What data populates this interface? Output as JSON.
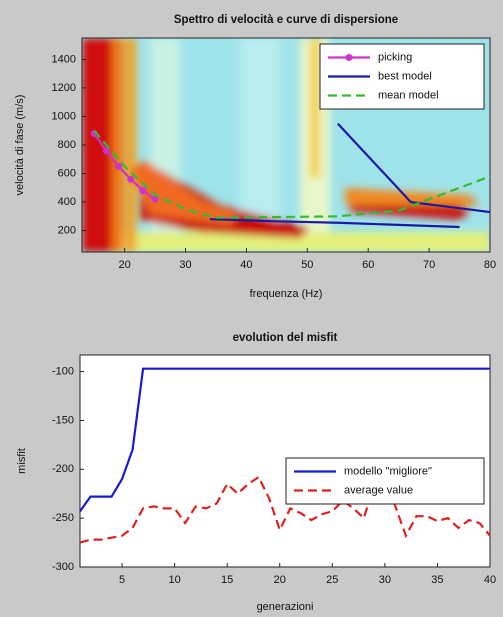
{
  "chart_data": [
    {
      "type": "line",
      "title": "Spettro di velocità e curve di dispersione",
      "xlabel": "frequenza (Hz)",
      "ylabel": "velocità di fase (m/s)",
      "xlim": [
        13,
        80
      ],
      "ylim": [
        50,
        1550
      ],
      "xticks": [
        20,
        30,
        40,
        50,
        60,
        70,
        80
      ],
      "yticks": [
        200,
        400,
        600,
        800,
        1000,
        1200,
        1400
      ],
      "legend": "upper right",
      "series": [
        {
          "name": "picking",
          "color": "#cc33cc",
          "marker": "o",
          "linestyle": "-",
          "x": [
            15,
            17,
            19,
            21,
            23,
            25
          ],
          "values": [
            880,
            760,
            650,
            560,
            480,
            420
          ]
        },
        {
          "name": "best model",
          "color": "#1a1aa6",
          "linestyle": "-",
          "x": [
            34,
            45,
            55,
            65,
            75,
            75,
            55,
            67,
            80
          ],
          "values": [
            280,
            265,
            255,
            240,
            225,
            null,
            950,
            400,
            330
          ]
        },
        {
          "name": "mean model",
          "color": "#33bb33",
          "linestyle": "--",
          "x": [
            15,
            20,
            25,
            30,
            35,
            45,
            55,
            65,
            70,
            80
          ],
          "values": [
            900,
            650,
            450,
            350,
            290,
            295,
            300,
            340,
            420,
            580
          ]
        }
      ]
    },
    {
      "type": "line",
      "title": "evolution del misfit",
      "xlabel": "generazioni",
      "ylabel": "misfit",
      "xlim": [
        1,
        40
      ],
      "ylim": [
        -300,
        -83
      ],
      "xticks": [
        5,
        10,
        15,
        20,
        25,
        30,
        35,
        40
      ],
      "yticks": [
        -300,
        -250,
        -200,
        -150,
        -100
      ],
      "legend": "right",
      "x": [
        1,
        2,
        3,
        4,
        5,
        6,
        7,
        8,
        9,
        10,
        11,
        12,
        13,
        14,
        15,
        16,
        17,
        18,
        19,
        20,
        21,
        22,
        23,
        24,
        25,
        26,
        27,
        28,
        29,
        30,
        31,
        32,
        33,
        34,
        35,
        36,
        37,
        38,
        39,
        40
      ],
      "series": [
        {
          "name": "modello \"migliore\"",
          "color": "#1a1ad6",
          "linestyle": "-",
          "values": [
            -243,
            -228,
            -228,
            -228,
            -210,
            -180,
            -97,
            -97,
            -97,
            -97,
            -97,
            -97,
            -97,
            -97,
            -97,
            -97,
            -97,
            -97,
            -97,
            -97,
            -97,
            -97,
            -97,
            -97,
            -97,
            -97,
            -97,
            -97,
            -97,
            -97,
            -97,
            -97,
            -97,
            -97,
            -97,
            -97,
            -97,
            -97,
            -97,
            -97
          ]
        },
        {
          "name": "average value",
          "color": "#dd2222",
          "linestyle": "--",
          "values": [
            -275,
            -272,
            -272,
            -270,
            -268,
            -260,
            -240,
            -238,
            -240,
            -240,
            -255,
            -238,
            -240,
            -235,
            -215,
            -225,
            -215,
            -208,
            -230,
            -262,
            -240,
            -245,
            -252,
            -246,
            -243,
            -232,
            -240,
            -250,
            -215,
            -210,
            -238,
            -268,
            -248,
            -248,
            -253,
            -250,
            -260,
            -252,
            -255,
            -268
          ]
        }
      ]
    }
  ]
}
